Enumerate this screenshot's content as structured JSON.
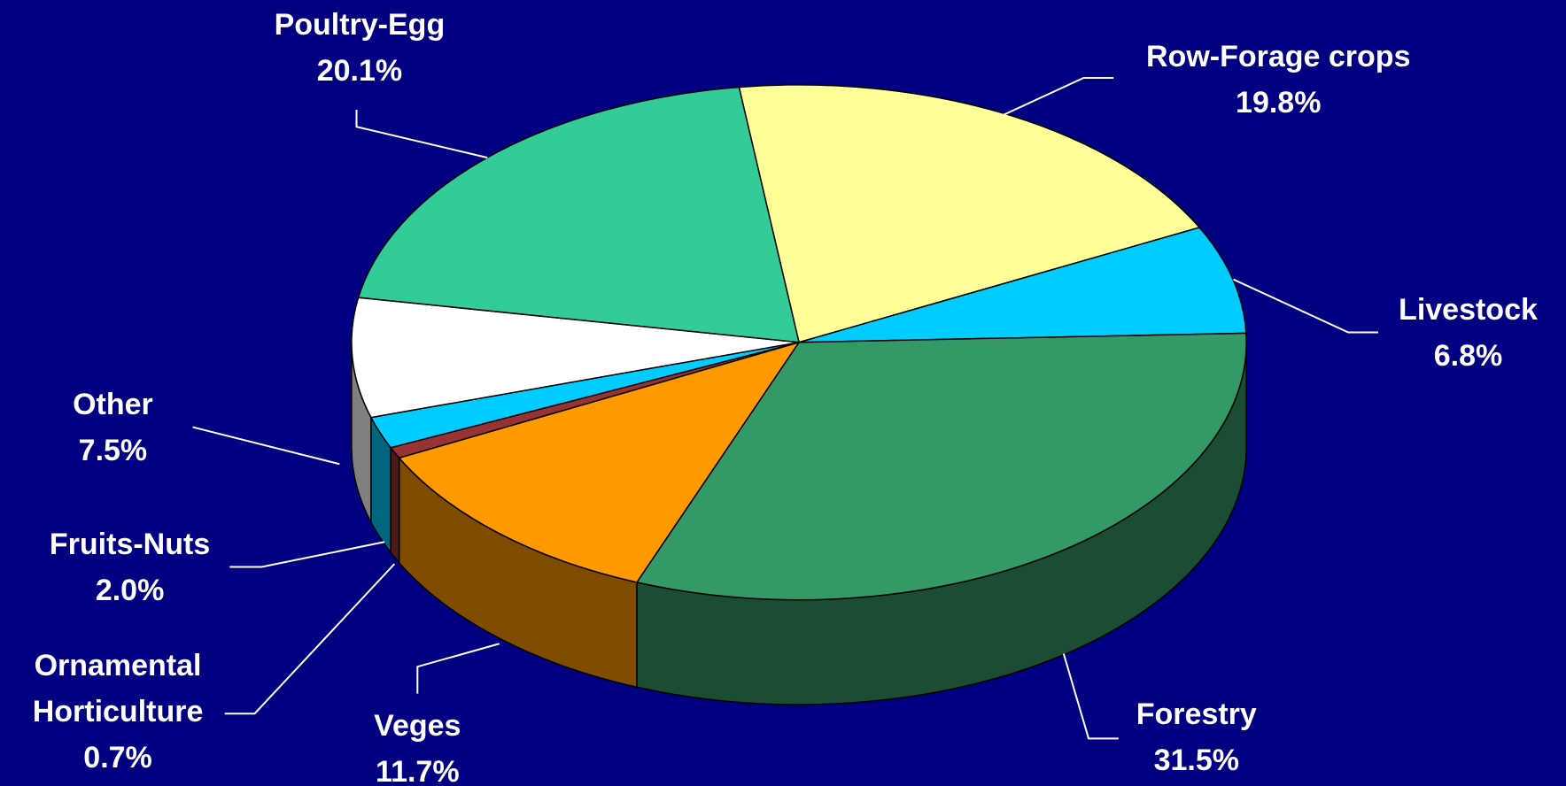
{
  "chart_data": {
    "type": "pie3d",
    "categories": [
      "Row-Forage crops",
      "Livestock",
      "Forestry",
      "Veges",
      "Ornamental Horticulture",
      "Fruits-Nuts",
      "Other",
      "Poultry-Egg"
    ],
    "values": [
      19.8,
      6.8,
      31.5,
      11.7,
      0.7,
      2.0,
      7.5,
      20.1
    ],
    "value_labels": [
      "19.8%",
      "6.8%",
      "31.5%",
      "11.7%",
      "0.7%",
      "2.0%",
      "7.5%",
      "20.1%"
    ],
    "colors": [
      "#ffff99",
      "#00ccff",
      "#339966",
      "#ff9900",
      "#993333",
      "#00ccff",
      "#ffffff",
      "#33cc99"
    ]
  }
}
